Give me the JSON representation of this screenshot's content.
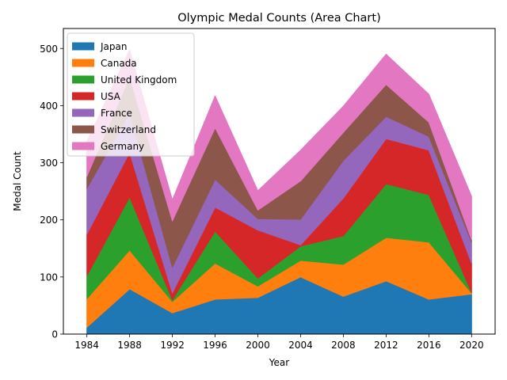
{
  "chart_data": {
    "type": "area",
    "stacked": true,
    "title": "Olympic Medal Counts (Area Chart)",
    "xlabel": "Year",
    "ylabel": "Medal Count",
    "x": [
      1984,
      1988,
      1992,
      1996,
      2000,
      2004,
      2008,
      2012,
      2016,
      2020
    ],
    "xlim": [
      1981.8,
      2022.2
    ],
    "ylim": [
      0,
      535
    ],
    "yticks": [
      0,
      100,
      200,
      300,
      400,
      500
    ],
    "grid": false,
    "legend_position": "top-left",
    "series": [
      {
        "name": "Japan",
        "color": "#1f77b4",
        "values": [
          12,
          79,
          37,
          61,
          64,
          100,
          66,
          93,
          61,
          70
        ]
      },
      {
        "name": "Canada",
        "color": "#ff7f0e",
        "values": [
          50,
          68,
          20,
          63,
          20,
          29,
          56,
          76,
          100,
          2
        ]
      },
      {
        "name": "United Kingdom",
        "color": "#2ca02c",
        "values": [
          40,
          93,
          3,
          56,
          14,
          25,
          50,
          94,
          83,
          1
        ]
      },
      {
        "name": "USA",
        "color": "#d62728",
        "values": [
          73,
          78,
          12,
          42,
          84,
          2,
          66,
          79,
          78,
          51
        ]
      },
      {
        "name": "France",
        "color": "#9467bd",
        "values": [
          80,
          69,
          45,
          49,
          20,
          45,
          66,
          39,
          24,
          37
        ]
      },
      {
        "name": "Switzerland",
        "color": "#8c564b",
        "values": [
          21,
          64,
          81,
          90,
          15,
          67,
          49,
          56,
          25,
          4
        ]
      },
      {
        "name": "Germany",
        "color": "#e377c2",
        "values": [
          61,
          47,
          37,
          56,
          34,
          54,
          46,
          53,
          49,
          76
        ]
      }
    ]
  }
}
